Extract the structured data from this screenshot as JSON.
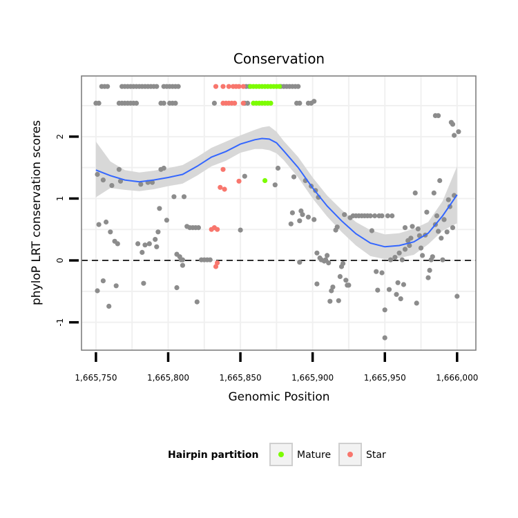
{
  "chart_data": {
    "type": "scatter",
    "title": "Conservation",
    "xlabel": "Genomic Position",
    "ylabel": "phyloP LRT conservation scores",
    "xlim": [
      1665740,
      1666013
    ],
    "ylim": [
      -1.45,
      2.98
    ],
    "x_ticks": [
      {
        "value": 1665750,
        "label": "1,665,750"
      },
      {
        "value": 1665800,
        "label": "1,665,800"
      },
      {
        "value": 1665850,
        "label": "1,665,850"
      },
      {
        "value": 1665900,
        "label": "1,665,900"
      },
      {
        "value": 1665950,
        "label": "1,665,950"
      },
      {
        "value": 1666000,
        "label": "1,666,000"
      }
    ],
    "y_ticks": [
      {
        "value": -1,
        "label": "-1"
      },
      {
        "value": 0,
        "label": "0"
      },
      {
        "value": 1,
        "label": "1"
      },
      {
        "value": 2,
        "label": "2"
      }
    ],
    "hline": {
      "y": 0,
      "style": "dashed"
    },
    "grid": true,
    "colors": {
      "other": "#8c8c8c",
      "Mature": "#7cfc00",
      "Star": "#f8766d",
      "smooth": "#3366ff",
      "band": "#d6d6d6",
      "grid": "#f0f0f0",
      "border": "#7f7f7f"
    },
    "legend": {
      "title": "Hairpin partition",
      "position": "bottom",
      "entries": [
        {
          "label": "Mature",
          "color": "#7cfc00"
        },
        {
          "label": "Star",
          "color": "#f8766d"
        }
      ]
    },
    "smooth": {
      "x": [
        1665750,
        1665760,
        1665770,
        1665780,
        1665790,
        1665800,
        1665810,
        1665820,
        1665830,
        1665840,
        1665850,
        1665860,
        1665865,
        1665870,
        1665875,
        1665880,
        1665890,
        1665900,
        1665910,
        1665920,
        1665930,
        1665940,
        1665950,
        1665960,
        1665970,
        1665980,
        1665990,
        1666000
      ],
      "y": [
        1.46,
        1.37,
        1.3,
        1.27,
        1.3,
        1.34,
        1.39,
        1.52,
        1.67,
        1.76,
        1.88,
        1.95,
        1.97,
        1.96,
        1.9,
        1.77,
        1.5,
        1.17,
        0.88,
        0.64,
        0.43,
        0.28,
        0.22,
        0.24,
        0.3,
        0.44,
        0.72,
        1.06
      ],
      "lower": [
        1.02,
        1.17,
        1.14,
        1.12,
        1.15,
        1.2,
        1.24,
        1.37,
        1.52,
        1.61,
        1.74,
        1.8,
        1.8,
        1.78,
        1.73,
        1.62,
        1.34,
        1.0,
        0.71,
        0.46,
        0.24,
        0.07,
        0.02,
        0.04,
        0.09,
        0.26,
        0.48,
        0.6
      ],
      "upper": [
        1.92,
        1.6,
        1.46,
        1.42,
        1.45,
        1.49,
        1.54,
        1.67,
        1.82,
        1.92,
        2.02,
        2.11,
        2.15,
        2.17,
        2.08,
        1.93,
        1.67,
        1.34,
        1.05,
        0.82,
        0.62,
        0.49,
        0.42,
        0.44,
        0.51,
        0.62,
        0.96,
        1.52
      ]
    },
    "series": [
      {
        "name": "Mature",
        "points": [
          [
            1665867,
            1.29
          ],
          [
            1665857,
            2.81
          ],
          [
            1665859,
            2.81
          ],
          [
            1665861,
            2.81
          ],
          [
            1665863,
            2.81
          ],
          [
            1665865,
            2.81
          ],
          [
            1665867,
            2.81
          ],
          [
            1665869,
            2.81
          ],
          [
            1665871,
            2.81
          ],
          [
            1665873,
            2.81
          ],
          [
            1665875,
            2.81
          ],
          [
            1665877,
            2.81
          ],
          [
            1665859,
            2.54
          ],
          [
            1665861,
            2.54
          ],
          [
            1665863,
            2.54
          ],
          [
            1665865,
            2.54
          ],
          [
            1665867,
            2.54
          ],
          [
            1665869,
            2.54
          ],
          [
            1665871,
            2.54
          ]
        ]
      },
      {
        "name": "Star",
        "points": [
          [
            1665832,
            0.53
          ],
          [
            1665830,
            0.5
          ],
          [
            1665834,
            0.5
          ],
          [
            1665834,
            -0.04
          ],
          [
            1665833,
            -0.1
          ],
          [
            1665836,
            1.18
          ],
          [
            1665839,
            1.15
          ],
          [
            1665838,
            1.47
          ],
          [
            1665849,
            1.28
          ],
          [
            1665833,
            2.81
          ],
          [
            1665838,
            2.81
          ],
          [
            1665842,
            2.81
          ],
          [
            1665845,
            2.81
          ],
          [
            1665847,
            2.81
          ],
          [
            1665849,
            2.81
          ],
          [
            1665852,
            2.81
          ],
          [
            1665838,
            2.54
          ],
          [
            1665840,
            2.54
          ],
          [
            1665842,
            2.54
          ],
          [
            1665844,
            2.54
          ],
          [
            1665846,
            2.54
          ],
          [
            1665852,
            2.54
          ]
        ]
      },
      {
        "name": "Other",
        "points": [
          [
            1665751,
            1.39
          ],
          [
            1665751,
            -0.49
          ],
          [
            1665752,
            0.58
          ],
          [
            1665755,
            1.3
          ],
          [
            1665755,
            -0.33
          ],
          [
            1665757,
            0.62
          ],
          [
            1665759,
            -0.74
          ],
          [
            1665760,
            0.46
          ],
          [
            1665761,
            1.21
          ],
          [
            1665763,
            0.31
          ],
          [
            1665764,
            -0.41
          ],
          [
            1665765,
            0.27
          ],
          [
            1665766,
            1.47
          ],
          [
            1665767,
            1.28
          ],
          [
            1665779,
            0.27
          ],
          [
            1665781,
            1.23
          ],
          [
            1665782,
            0.13
          ],
          [
            1665783,
            -0.37
          ],
          [
            1665784,
            0.25
          ],
          [
            1665786,
            1.26
          ],
          [
            1665787,
            0.27
          ],
          [
            1665789,
            1.26
          ],
          [
            1665791,
            0.34
          ],
          [
            1665792,
            0.22
          ],
          [
            1665793,
            0.46
          ],
          [
            1665794,
            0.84
          ],
          [
            1665795,
            1.47
          ],
          [
            1665797,
            1.49
          ],
          [
            1665799,
            0.65
          ],
          [
            1665804,
            1.03
          ],
          [
            1665806,
            -0.44
          ],
          [
            1665806,
            0.1
          ],
          [
            1665808,
            0.06
          ],
          [
            1665809,
            0.01
          ],
          [
            1665810,
            0.01
          ],
          [
            1665810,
            -0.08
          ],
          [
            1665811,
            1.03
          ],
          [
            1665813,
            0.55
          ],
          [
            1665815,
            0.53
          ],
          [
            1665817,
            0.53
          ],
          [
            1665819,
            0.53
          ],
          [
            1665820,
            -0.67
          ],
          [
            1665821,
            0.53
          ],
          [
            1665823,
            0.01
          ],
          [
            1665825,
            0.01
          ],
          [
            1665827,
            0.01
          ],
          [
            1665829,
            0.01
          ],
          [
            1665850,
            0.49
          ],
          [
            1665853,
            1.36
          ],
          [
            1665874,
            1.22
          ],
          [
            1665876,
            1.49
          ],
          [
            1665885,
            0.59
          ],
          [
            1665886,
            0.77
          ],
          [
            1665887,
            1.35
          ],
          [
            1665891,
            -0.03
          ],
          [
            1665891,
            0.64
          ],
          [
            1665892,
            0.8
          ],
          [
            1665893,
            0.74
          ],
          [
            1665895,
            1.29
          ],
          [
            1665897,
            0.7
          ],
          [
            1665899,
            1.2
          ],
          [
            1665901,
            0.66
          ],
          [
            1665902,
            1.13
          ],
          [
            1665903,
            -0.38
          ],
          [
            1665903,
            0.12
          ],
          [
            1665904,
            1.02
          ],
          [
            1665905,
            0.04
          ],
          [
            1665906,
            0.01
          ],
          [
            1665908,
            -0.01
          ],
          [
            1665909,
            0.01
          ],
          [
            1665910,
            0.08
          ],
          [
            1665911,
            -0.04
          ],
          [
            1665912,
            -0.66
          ],
          [
            1665913,
            -0.49
          ],
          [
            1665914,
            -0.43
          ],
          [
            1665916,
            0.49
          ],
          [
            1665917,
            0.54
          ],
          [
            1665918,
            -0.65
          ],
          [
            1665919,
            -0.26
          ],
          [
            1665920,
            -0.1
          ],
          [
            1665921,
            -0.05
          ],
          [
            1665922,
            0.74
          ],
          [
            1665923,
            -0.32
          ],
          [
            1665924,
            -0.4
          ],
          [
            1665925,
            -0.4
          ],
          [
            1665926,
            0.69
          ],
          [
            1665928,
            0.72
          ],
          [
            1665930,
            0.72
          ],
          [
            1665932,
            0.72
          ],
          [
            1665934,
            0.72
          ],
          [
            1665936,
            0.72
          ],
          [
            1665938,
            0.72
          ],
          [
            1665940,
            0.72
          ],
          [
            1665941,
            0.48
          ],
          [
            1665943,
            0.72
          ],
          [
            1665944,
            -0.18
          ],
          [
            1665945,
            -0.48
          ],
          [
            1665946,
            0.72
          ],
          [
            1665948,
            0.72
          ],
          [
            1665948,
            -0.2
          ],
          [
            1665950,
            -0.8
          ],
          [
            1665950,
            -1.25
          ],
          [
            1665952,
            0.72
          ],
          [
            1665953,
            -0.47
          ],
          [
            1665954,
            0.01
          ],
          [
            1665955,
            0.72
          ],
          [
            1665957,
            0.05
          ],
          [
            1665958,
            -0.55
          ],
          [
            1665959,
            -0.36
          ],
          [
            1665960,
            0.12
          ],
          [
            1665961,
            -0.62
          ],
          [
            1665962,
            0.01
          ],
          [
            1665963,
            -0.39
          ],
          [
            1665964,
            0.18
          ],
          [
            1665964,
            0.53
          ],
          [
            1665966,
            0.32
          ],
          [
            1665967,
            0.24
          ],
          [
            1665968,
            0.36
          ],
          [
            1665969,
            0.55
          ],
          [
            1665971,
            1.09
          ],
          [
            1665972,
            -0.69
          ],
          [
            1665973,
            0.51
          ],
          [
            1665974,
            0.4
          ],
          [
            1665975,
            0.2
          ],
          [
            1665976,
            0.08
          ],
          [
            1665978,
            0.41
          ],
          [
            1665979,
            0.78
          ],
          [
            1665980,
            -0.28
          ],
          [
            1665981,
            -0.16
          ],
          [
            1665982,
            0.01
          ],
          [
            1665983,
            0.06
          ],
          [
            1665984,
            1.09
          ],
          [
            1665985,
            0.58
          ],
          [
            1665986,
            0.72
          ],
          [
            1665987,
            0.47
          ],
          [
            1665988,
            1.29
          ],
          [
            1665989,
            0.36
          ],
          [
            1665990,
            0.01
          ],
          [
            1665991,
            0.66
          ],
          [
            1665993,
            0.46
          ],
          [
            1665994,
            0.98
          ],
          [
            1665995,
            0.87
          ],
          [
            1665996,
            2.23
          ],
          [
            1665997,
            0.53
          ],
          [
            1665998,
            1.05
          ],
          [
            1666000,
            -0.58
          ],
          [
            1665997,
            2.2
          ],
          [
            1665998,
            2.02
          ],
          [
            1666001,
            2.08
          ],
          [
            1665985,
            2.34
          ],
          [
            1665987,
            2.34
          ],
          [
            1665750,
            2.54
          ],
          [
            1665752,
            2.54
          ],
          [
            1665766,
            2.54
          ],
          [
            1665768,
            2.54
          ],
          [
            1665770,
            2.54
          ],
          [
            1665772,
            2.54
          ],
          [
            1665774,
            2.54
          ],
          [
            1665776,
            2.54
          ],
          [
            1665778,
            2.54
          ],
          [
            1665795,
            2.54
          ],
          [
            1665797,
            2.54
          ],
          [
            1665801,
            2.54
          ],
          [
            1665803,
            2.54
          ],
          [
            1665805,
            2.54
          ],
          [
            1665832,
            2.54
          ],
          [
            1665853,
            2.54
          ],
          [
            1665855,
            2.54
          ],
          [
            1665889,
            2.54
          ],
          [
            1665891,
            2.54
          ],
          [
            1665897,
            2.54
          ],
          [
            1665899,
            2.54
          ],
          [
            1665901,
            2.57
          ],
          [
            1665754,
            2.81
          ],
          [
            1665756,
            2.81
          ],
          [
            1665758,
            2.81
          ],
          [
            1665768,
            2.81
          ],
          [
            1665770,
            2.81
          ],
          [
            1665772,
            2.81
          ],
          [
            1665774,
            2.81
          ],
          [
            1665776,
            2.81
          ],
          [
            1665778,
            2.81
          ],
          [
            1665780,
            2.81
          ],
          [
            1665782,
            2.81
          ],
          [
            1665784,
            2.81
          ],
          [
            1665786,
            2.81
          ],
          [
            1665788,
            2.81
          ],
          [
            1665790,
            2.81
          ],
          [
            1665792,
            2.81
          ],
          [
            1665797,
            2.81
          ],
          [
            1665799,
            2.81
          ],
          [
            1665801,
            2.81
          ],
          [
            1665803,
            2.81
          ],
          [
            1665805,
            2.81
          ],
          [
            1665807,
            2.81
          ],
          [
            1665854,
            2.81
          ],
          [
            1665856,
            2.81
          ],
          [
            1665878,
            2.81
          ],
          [
            1665880,
            2.81
          ],
          [
            1665882,
            2.81
          ],
          [
            1665884,
            2.81
          ],
          [
            1665886,
            2.81
          ],
          [
            1665888,
            2.81
          ],
          [
            1665890,
            2.81
          ]
        ]
      }
    ]
  }
}
